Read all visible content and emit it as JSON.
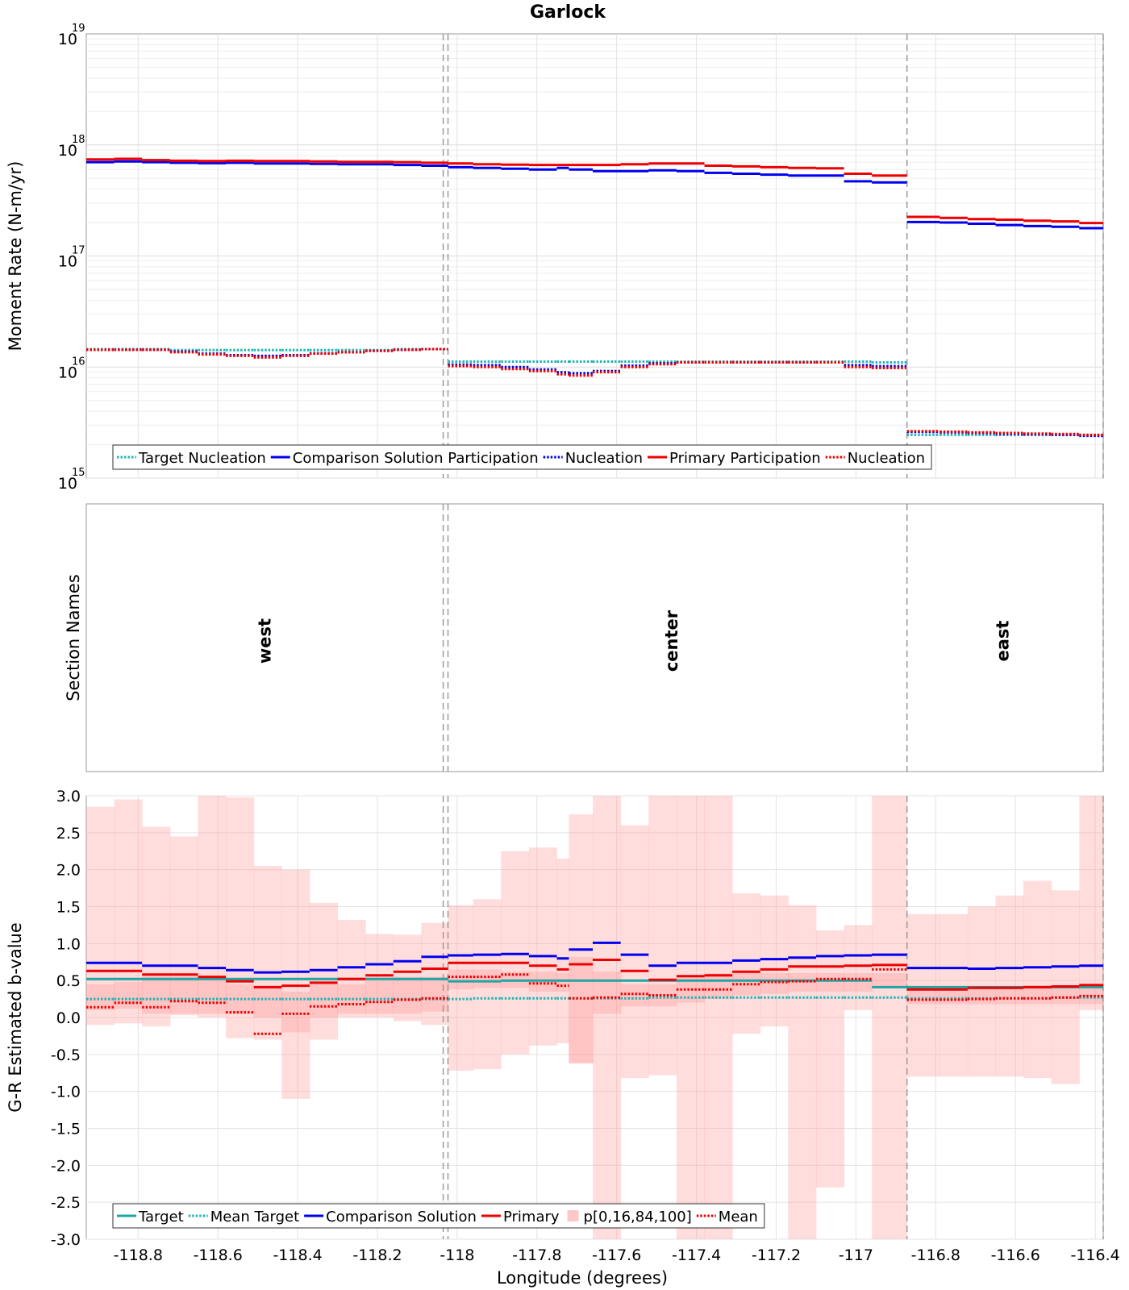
{
  "title": "Garlock",
  "xlabel": "Longitude (degrees)",
  "xlim": [
    -118.93,
    -116.38
  ],
  "xticks": [
    "-118.8",
    "-118.6",
    "-118.4",
    "-118.2",
    "-118",
    "-117.8",
    "-117.6",
    "-117.4",
    "-117.2",
    "-117",
    "-116.8",
    "-116.6",
    "-116.4"
  ],
  "section_boundaries": [
    -118.035,
    -118.023,
    -116.872,
    -116.38
  ],
  "chart_data": [
    {
      "type": "line",
      "name": "moment-rate",
      "ylabel": "Moment Rate (N-m/yr)",
      "yscale": "log",
      "ylim": [
        1000000000000000.0,
        1e+19
      ],
      "ytick_base": [
        "10",
        "10",
        "10",
        "10",
        "10"
      ],
      "ytick_exp": [
        "15",
        "16",
        "17",
        "18",
        "19"
      ],
      "legend": [
        {
          "label": "Target Nucleation",
          "color": "#1fb5b5",
          "style": "dotted"
        },
        {
          "label": "Comparison Solution Participation",
          "color": "#0000ee",
          "style": "solid"
        },
        {
          "label": "Nucleation",
          "color": "#0000ee",
          "style": "dotted"
        },
        {
          "label": "Primary Participation",
          "color": "#ee0000",
          "style": "solid"
        },
        {
          "label": "Nucleation",
          "color": "#ee0000",
          "style": "dotted"
        }
      ],
      "x_edges": [
        -118.93,
        -118.86,
        -118.79,
        -118.72,
        -118.65,
        -118.58,
        -118.51,
        -118.44,
        -118.37,
        -118.3,
        -118.23,
        -118.16,
        -118.09,
        -118.023,
        -117.96,
        -117.89,
        -117.82,
        -117.75,
        -117.72,
        -117.66,
        -117.59,
        -117.52,
        -117.45,
        -117.38,
        -117.31,
        -117.24,
        -117.17,
        -117.1,
        -117.03,
        -116.96,
        -116.872,
        -116.79,
        -116.72,
        -116.65,
        -116.58,
        -116.51,
        -116.44,
        -116.38
      ],
      "series": [
        {
          "name": "Target Nucleation",
          "color": "#1fb5b5",
          "style": "dotted",
          "values": [
            1.45e+16,
            1.45e+16,
            1.45e+16,
            1.42e+16,
            1.42e+16,
            1.42e+16,
            1.42e+16,
            1.42e+16,
            1.42e+16,
            1.42e+16,
            1.42e+16,
            1.45e+16,
            1.45e+16,
            1.12e+16,
            1.12e+16,
            1.12e+16,
            1.12e+16,
            1.12e+16,
            1.12e+16,
            1.12e+16,
            1.12e+16,
            1.12e+16,
            1.12e+16,
            1.12e+16,
            1.12e+16,
            1.12e+16,
            1.12e+16,
            1.12e+16,
            1.12e+16,
            1.1e+16,
            2450000000000000.0,
            2450000000000000.0,
            2450000000000000.0,
            2450000000000000.0,
            2450000000000000.0,
            2450000000000000.0,
            2450000000000000.0
          ]
        },
        {
          "name": "Comparison Solution Participation",
          "color": "#0000ee",
          "style": "solid",
          "values": [
            7e+17,
            7.1e+17,
            7e+17,
            6.9e+17,
            6.85e+17,
            6.9e+17,
            6.8e+17,
            6.8e+17,
            6.75e+17,
            6.7e+17,
            6.7e+17,
            6.6e+17,
            6.5e+17,
            6.3e+17,
            6.2e+17,
            6.1e+17,
            6e+17,
            6.2e+17,
            6e+17,
            5.8e+17,
            5.8e+17,
            5.9e+17,
            5.8e+17,
            5.6e+17,
            5.5e+17,
            5.4e+17,
            5.3e+17,
            5.3e+17,
            4.7e+17,
            4.6e+17,
            2.02e+17,
            2e+17,
            1.95e+17,
            1.9e+17,
            1.86e+17,
            1.83e+17,
            1.78e+17
          ]
        },
        {
          "name": "Nucleation",
          "color": "#0000ee",
          "style": "dotted",
          "values": [
            1.43e+16,
            1.43e+16,
            1.43e+16,
            1.38e+16,
            1.32e+16,
            1.28e+16,
            1.26e+16,
            1.28e+16,
            1.33e+16,
            1.36e+16,
            1.4e+16,
            1.43e+16,
            1.45e+16,
            1.05e+16,
            1.04e+16,
            1e+16,
            9500000000000000.0,
            9000000000000000.0,
            8800000000000000.0,
            9200000000000000.0,
            1.03e+16,
            1.08e+16,
            1.1e+16,
            1.1e+16,
            1.1e+16,
            1.1e+16,
            1.1e+16,
            1.1e+16,
            1.04e+16,
            1.02e+16,
            2600000000000000.0,
            2580000000000000.0,
            2550000000000000.0,
            2500000000000000.0,
            2480000000000000.0,
            2450000000000000.0,
            2400000000000000.0
          ]
        },
        {
          "name": "Primary Participation",
          "color": "#ee0000",
          "style": "solid",
          "values": [
            7.4e+17,
            7.5e+17,
            7.3e+17,
            7.2e+17,
            7.15e+17,
            7.2e+17,
            7.15e+17,
            7.15e+17,
            7.1e+17,
            7.05e+17,
            7.05e+17,
            7e+17,
            6.9e+17,
            6.8e+17,
            6.7e+17,
            6.65e+17,
            6.6e+17,
            6.6e+17,
            6.6e+17,
            6.6e+17,
            6.7e+17,
            6.8e+17,
            6.8e+17,
            6.5e+17,
            6.4e+17,
            6.3e+17,
            6.2e+17,
            6.15e+17,
            5.5e+17,
            5.3e+17,
            2.25e+17,
            2.2e+17,
            2.15e+17,
            2.12e+17,
            2.08e+17,
            2.05e+17,
            1.98e+17
          ]
        },
        {
          "name": "Nucleation",
          "color": "#ee0000",
          "style": "dotted",
          "values": [
            1.43e+16,
            1.43e+16,
            1.43e+16,
            1.36e+16,
            1.3e+16,
            1.26e+16,
            1.22e+16,
            1.26e+16,
            1.32e+16,
            1.36e+16,
            1.4e+16,
            1.43e+16,
            1.45e+16,
            1.02e+16,
            1e+16,
            9600000000000000.0,
            9200000000000000.0,
            8600000000000000.0,
            8400000000000000.0,
            9000000000000000.0,
            1e+16,
            1.06e+16,
            1.1e+16,
            1.1e+16,
            1.1e+16,
            1.1e+16,
            1.1e+16,
            1.1e+16,
            1e+16,
            9800000000000000.0,
            2650000000000000.0,
            2620000000000000.0,
            2580000000000000.0,
            2550000000000000.0,
            2520000000000000.0,
            2500000000000000.0,
            2450000000000000.0
          ]
        }
      ]
    },
    {
      "type": "table",
      "name": "section-names",
      "ylabel": "Section Names",
      "sections": [
        {
          "label": "west",
          "x": -118.48
        },
        {
          "label": "center",
          "x": -117.46
        },
        {
          "label": "east",
          "x": -116.63
        }
      ]
    },
    {
      "type": "line",
      "name": "b-value",
      "ylabel": "G-R Estimated b-value",
      "ylim": [
        -3.0,
        3.0
      ],
      "yticks": [
        "3.0",
        "2.5",
        "2.0",
        "1.5",
        "1.0",
        "0.5",
        "0.0",
        "-0.5",
        "-1.0",
        "-1.5",
        "-2.0",
        "-2.5",
        "-3.0"
      ],
      "legend": [
        {
          "label": "Target",
          "color": "#1fa5a5",
          "style": "solid"
        },
        {
          "label": "Mean Target",
          "color": "#1fb5b5",
          "style": "dotted"
        },
        {
          "label": "Comparison Solution",
          "color": "#0000ee",
          "style": "solid"
        },
        {
          "label": "Primary",
          "color": "#ee0000",
          "style": "solid"
        },
        {
          "label": "p[0,16,84,100]",
          "color": "#ffc8c8",
          "style": "box"
        },
        {
          "label": "Mean",
          "color": "#ee0000",
          "style": "dotted"
        }
      ],
      "x_edges": [
        -118.93,
        -118.86,
        -118.79,
        -118.72,
        -118.65,
        -118.58,
        -118.51,
        -118.44,
        -118.37,
        -118.3,
        -118.23,
        -118.16,
        -118.09,
        -118.023,
        -117.96,
        -117.89,
        -117.82,
        -117.75,
        -117.72,
        -117.66,
        -117.59,
        -117.52,
        -117.45,
        -117.38,
        -117.31,
        -117.24,
        -117.17,
        -117.1,
        -117.03,
        -116.96,
        -116.872,
        -116.79,
        -116.72,
        -116.65,
        -116.58,
        -116.51,
        -116.44,
        -116.38
      ],
      "p0": [
        -0.1,
        -0.08,
        -0.12,
        0.03,
        0.0,
        -0.28,
        -0.3,
        -1.1,
        -0.3,
        0.0,
        0.0,
        -0.05,
        -0.1,
        -0.72,
        -0.7,
        -0.5,
        -0.38,
        -0.35,
        -0.62,
        -3.0,
        -0.82,
        -0.78,
        -3.0,
        -3.0,
        -0.22,
        -0.12,
        -3.0,
        -2.3,
        0.1,
        -3.0,
        -0.8,
        -0.8,
        -0.8,
        -0.8,
        -0.82,
        -0.9,
        0.1
      ],
      "p100": [
        2.85,
        2.95,
        2.58,
        2.45,
        3.0,
        2.98,
        2.05,
        2.0,
        1.55,
        1.32,
        1.13,
        1.12,
        1.28,
        1.52,
        1.6,
        2.25,
        2.3,
        2.15,
        2.75,
        3.0,
        2.6,
        3.0,
        3.0,
        3.0,
        1.68,
        1.65,
        1.52,
        1.18,
        1.25,
        3.0,
        1.4,
        1.4,
        1.5,
        1.65,
        1.85,
        1.72,
        3.0
      ],
      "p16": [
        0.1,
        0.12,
        0.05,
        0.05,
        0.05,
        0.05,
        0.0,
        -0.2,
        0.0,
        0.05,
        0.05,
        0.05,
        0.08,
        0.38,
        0.4,
        0.4,
        0.35,
        0.35,
        -0.62,
        0.05,
        0.15,
        0.15,
        0.2,
        0.25,
        0.3,
        0.32,
        0.35,
        0.35,
        0.35,
        0.4,
        0.18,
        0.18,
        0.18,
        0.18,
        0.18,
        0.18,
        0.18
      ],
      "p84": [
        0.45,
        0.48,
        0.55,
        0.55,
        0.5,
        0.45,
        0.4,
        0.35,
        0.45,
        0.45,
        0.5,
        0.55,
        0.55,
        0.65,
        0.65,
        0.62,
        0.62,
        0.6,
        0.82,
        0.62,
        0.45,
        0.45,
        0.55,
        0.6,
        0.6,
        0.6,
        0.6,
        0.6,
        0.6,
        0.6,
        0.4,
        0.4,
        0.4,
        0.4,
        0.4,
        0.4,
        0.4
      ],
      "series": [
        {
          "name": "Target",
          "color": "#1fa5a5",
          "style": "solid",
          "values": [
            0.52,
            0.52,
            0.52,
            0.52,
            0.52,
            0.52,
            0.52,
            0.52,
            0.52,
            0.52,
            0.52,
            0.52,
            0.52,
            0.49,
            0.49,
            0.5,
            0.5,
            0.5,
            0.5,
            0.5,
            0.5,
            0.5,
            0.5,
            0.5,
            0.5,
            0.5,
            0.5,
            0.5,
            0.5,
            0.41,
            0.41,
            0.41,
            0.41,
            0.41,
            0.41,
            0.41,
            0.41
          ]
        },
        {
          "name": "Mean Target",
          "color": "#1fb5b5",
          "style": "dotted",
          "values": [
            0.25,
            0.25,
            0.25,
            0.25,
            0.25,
            0.25,
            0.25,
            0.25,
            0.25,
            0.25,
            0.25,
            0.25,
            0.25,
            0.25,
            0.26,
            0.26,
            0.26,
            0.26,
            0.26,
            0.26,
            0.26,
            0.27,
            0.27,
            0.27,
            0.27,
            0.27,
            0.27,
            0.27,
            0.27,
            0.27,
            0.26,
            0.26,
            0.26,
            0.26,
            0.26,
            0.27,
            0.27
          ]
        },
        {
          "name": "Comparison Solution",
          "color": "#0000ee",
          "style": "solid",
          "values": [
            0.74,
            0.74,
            0.7,
            0.7,
            0.67,
            0.64,
            0.61,
            0.62,
            0.64,
            0.68,
            0.72,
            0.76,
            0.82,
            0.84,
            0.85,
            0.86,
            0.83,
            0.8,
            0.92,
            1.01,
            0.85,
            0.7,
            0.74,
            0.74,
            0.77,
            0.79,
            0.81,
            0.83,
            0.84,
            0.85,
            0.67,
            0.67,
            0.66,
            0.67,
            0.68,
            0.69,
            0.7
          ]
        },
        {
          "name": "Primary",
          "color": "#ee0000",
          "style": "solid",
          "values": [
            0.63,
            0.63,
            0.58,
            0.58,
            0.55,
            0.49,
            0.41,
            0.43,
            0.47,
            0.52,
            0.57,
            0.62,
            0.66,
            0.74,
            0.74,
            0.74,
            0.7,
            0.65,
            0.72,
            0.78,
            0.63,
            0.51,
            0.56,
            0.57,
            0.62,
            0.65,
            0.69,
            0.69,
            0.7,
            0.71,
            0.38,
            0.38,
            0.4,
            0.4,
            0.41,
            0.42,
            0.44
          ]
        },
        {
          "name": "Mean",
          "color": "#ee0000",
          "style": "dotted",
          "values": [
            0.14,
            0.2,
            0.14,
            0.22,
            0.2,
            0.07,
            -0.22,
            0.05,
            0.15,
            0.18,
            0.21,
            0.24,
            0.26,
            0.55,
            0.55,
            0.58,
            0.46,
            0.43,
            0.26,
            0.27,
            0.32,
            0.3,
            0.38,
            0.38,
            0.45,
            0.48,
            0.49,
            0.52,
            0.52,
            0.65,
            0.24,
            0.24,
            0.25,
            0.26,
            0.26,
            0.27,
            0.29
          ]
        }
      ]
    }
  ]
}
